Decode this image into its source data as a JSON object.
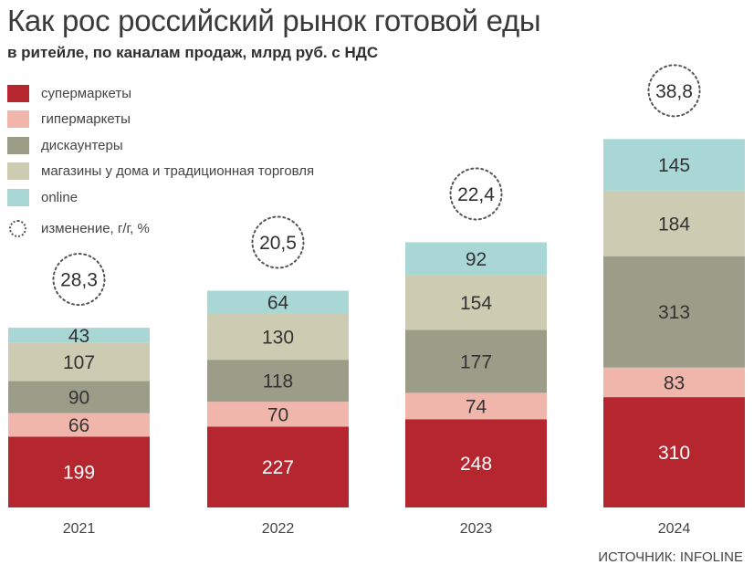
{
  "header": {
    "title": "Как рос российский рынок готовой еды",
    "subtitle": "в ритейле, по каналам продаж, млрд руб. с НДС"
  },
  "legend": {
    "items": [
      {
        "label": "супермаркеты",
        "color": "#b6262f"
      },
      {
        "label": "гипермаркеты",
        "color": "#f0b6ac"
      },
      {
        "label": "дискаунтеры",
        "color": "#9c9d88"
      },
      {
        "label": "магазины у дома и традиционная торговля",
        "color": "#cdcbb1"
      },
      {
        "label": "online",
        "color": "#a9d7d5"
      }
    ],
    "change_label": "изменение, г/г, %"
  },
  "source": "ИСТОЧНИК: INFOLINE",
  "chart_data": {
    "type": "bar",
    "stacked": true,
    "title": "Как рос российский рынок готовой еды",
    "subtitle": "в ритейле, по каналам продаж, млрд руб. с НДС",
    "categories": [
      "2021",
      "2022",
      "2023",
      "2024"
    ],
    "series": [
      {
        "name": "супермаркеты",
        "color": "#b6262f",
        "text_color": "#ffffff",
        "values": [
          199,
          227,
          248,
          310
        ]
      },
      {
        "name": "гипермаркеты",
        "color": "#f0b6ac",
        "text_color": "#333333",
        "values": [
          66,
          70,
          74,
          83
        ]
      },
      {
        "name": "дискаунтеры",
        "color": "#9c9d88",
        "text_color": "#333333",
        "values": [
          90,
          118,
          177,
          313
        ]
      },
      {
        "name": "магазины у дома и традиционная торговля",
        "color": "#cdcbb1",
        "text_color": "#333333",
        "values": [
          107,
          130,
          154,
          184
        ]
      },
      {
        "name": "online",
        "color": "#a9d7d5",
        "text_color": "#333333",
        "values": [
          43,
          64,
          92,
          145
        ]
      }
    ],
    "change_yoy": {
      "label": "изменение, г/г, %",
      "values": [
        "28,3",
        "20,5",
        "22,4",
        "38,8"
      ]
    },
    "legend_position": "top-left",
    "grid": false
  }
}
